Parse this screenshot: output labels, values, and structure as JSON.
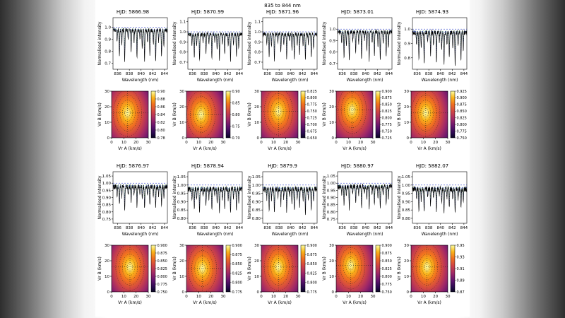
{
  "figure": {
    "suptitle": "835 to 844 nm",
    "xlabel_spectrum": "Wavelength (nm)",
    "ylabel_spectrum": "Normalised intensity",
    "xlabel_map": "Vr A (km/s)",
    "ylabel_map": "Vr B (km/s)",
    "background_color": "#ffffff",
    "spectrum_line_color": "#000000",
    "model_a_color": "#2233bb",
    "model_b_color": "#1e7a1e",
    "continuum_color": "#3344cc",
    "colormap": "inferno"
  },
  "chart_data": {
    "type": "grid",
    "description": "2x5 grid of epochs; each epoch has a normalised spectrum (835-844 nm) with model overlays and a chi-square velocity map Vr A vs Vr B with colorbar",
    "wavelength_range": [
      835.2,
      844.5
    ],
    "wavelength_ticks": [
      "836",
      "838",
      "840",
      "842",
      "844"
    ],
    "vr_range": [
      0,
      30
    ],
    "vr_ticks": [
      "0",
      "10",
      "20",
      "30"
    ],
    "absorption_lines": [
      [
        835.9,
        0.1
      ],
      [
        836.3,
        0.22
      ],
      [
        836.7,
        0.12
      ],
      [
        837.2,
        0.26
      ],
      [
        837.8,
        0.08
      ],
      [
        838.3,
        0.18
      ],
      [
        838.8,
        0.1
      ],
      [
        839.3,
        0.24
      ],
      [
        839.8,
        0.07
      ],
      [
        840.2,
        0.15
      ],
      [
        840.6,
        0.25
      ],
      [
        841.1,
        0.1
      ],
      [
        841.5,
        0.2
      ],
      [
        842.1,
        0.12
      ],
      [
        842.5,
        0.26
      ],
      [
        843.0,
        0.1
      ],
      [
        843.5,
        0.22
      ],
      [
        843.9,
        0.14
      ]
    ],
    "panels": [
      {
        "hjd": "HJD: 5866.98",
        "suptitle": "",
        "seed": 11,
        "depth_scale": 1.0,
        "spectrum": {
          "ylim": [
            0.65,
            1.08
          ],
          "yticks": [
            "0.7",
            "0.8",
            "0.9",
            "1.0"
          ]
        },
        "map": {
          "center": [
            13,
            16
          ],
          "cbar_ticks": [
            "0.90",
            "0.88",
            "0.86",
            "0.84",
            "0.82",
            "0.80",
            "0.78"
          ]
        }
      },
      {
        "hjd": "HJD: 5870.99",
        "suptitle": "",
        "seed": 22,
        "depth_scale": 1.0,
        "spectrum": {
          "ylim": [
            0.63,
            1.14
          ],
          "yticks": [
            "0.7",
            "0.8",
            "0.9",
            "1.0",
            "1.1"
          ]
        },
        "map": {
          "center": [
            12,
            15
          ],
          "cbar_ticks": [
            "0.90",
            "0.85",
            "0.80",
            "0.75",
            "0.70"
          ]
        }
      },
      {
        "hjd": "HJD: 5871.96",
        "suptitle": "835 to 844 nm",
        "seed": 33,
        "depth_scale": 1.0,
        "spectrum": {
          "ylim": [
            0.63,
            1.14
          ],
          "yticks": [
            "0.7",
            "0.8",
            "0.9",
            "1.0",
            "1.1"
          ]
        },
        "map": {
          "center": [
            14,
            17
          ],
          "cbar_ticks": [
            "0.825",
            "0.800",
            "0.775",
            "0.750",
            "0.725",
            "0.700",
            "0.675",
            "0.650"
          ]
        }
      },
      {
        "hjd": "HJD: 5873.01",
        "suptitle": "",
        "seed": 44,
        "depth_scale": 1.0,
        "spectrum": {
          "ylim": [
            0.65,
            1.1
          ],
          "yticks": [
            "0.7",
            "0.8",
            "0.9",
            "1.0"
          ]
        },
        "map": {
          "center": [
            13,
            18
          ],
          "cbar_ticks": [
            "0.900",
            "0.875",
            "0.850",
            "0.825",
            "0.800",
            "0.775",
            "0.750",
            "0.725"
          ]
        }
      },
      {
        "hjd": "HJD: 5874.93",
        "suptitle": "",
        "seed": 55,
        "depth_scale": 0.85,
        "spectrum": {
          "ylim": [
            0.72,
            1.08
          ],
          "yticks": [
            "0.8",
            "0.9",
            "1.0"
          ]
        },
        "map": {
          "center": [
            12,
            16
          ],
          "cbar_ticks": [
            "0.925",
            "0.900",
            "0.875",
            "0.850",
            "0.825",
            "0.800",
            "0.775",
            "0.750"
          ]
        }
      },
      {
        "hjd": "HJD: 5876.97",
        "suptitle": "",
        "seed": 66,
        "depth_scale": 0.6,
        "spectrum": {
          "ylim": [
            0.72,
            1.08
          ],
          "yticks": [
            "0.75",
            "0.80",
            "0.85",
            "0.90",
            "0.95",
            "1.00",
            "1.05"
          ]
        },
        "map": {
          "center": [
            15,
            16
          ],
          "cbar_ticks": [
            "0.900",
            "0.875",
            "0.850",
            "0.825",
            "0.800",
            "0.775",
            "0.750"
          ]
        }
      },
      {
        "hjd": "HJD: 5878.94",
        "suptitle": "",
        "seed": 77,
        "depth_scale": 0.55,
        "spectrum": {
          "ylim": [
            0.77,
            1.08
          ],
          "yticks": [
            "0.80",
            "0.85",
            "0.90",
            "0.95",
            "1.00",
            "1.05"
          ]
        },
        "map": {
          "center": [
            13,
            15
          ],
          "cbar_ticks": [
            "0.900",
            "0.875",
            "0.850",
            "0.825",
            "0.800",
            "0.775"
          ]
        }
      },
      {
        "hjd": "HJD: 5879.9",
        "suptitle": "",
        "seed": 88,
        "depth_scale": 0.55,
        "spectrum": {
          "ylim": [
            0.77,
            1.08
          ],
          "yticks": [
            "0.80",
            "0.85",
            "0.90",
            "0.95",
            "1.00",
            "1.05"
          ]
        },
        "map": {
          "center": [
            14,
            16
          ],
          "cbar_ticks": [
            "0.900",
            "0.875",
            "0.850",
            "0.825",
            "0.800",
            "0.775"
          ]
        }
      },
      {
        "hjd": "HJD: 5880.97",
        "suptitle": "",
        "seed": 99,
        "depth_scale": 0.6,
        "spectrum": {
          "ylim": [
            0.72,
            1.08
          ],
          "yticks": [
            "0.75",
            "0.80",
            "0.85",
            "0.90",
            "0.95",
            "1.00",
            "1.05"
          ]
        },
        "map": {
          "center": [
            12,
            17
          ],
          "cbar_ticks": [
            "0.900",
            "0.875",
            "0.850",
            "0.825",
            "0.800",
            "0.775",
            "0.750"
          ]
        }
      },
      {
        "hjd": "HJD: 5882.07",
        "suptitle": "",
        "seed": 110,
        "depth_scale": 0.55,
        "spectrum": {
          "ylim": [
            0.77,
            1.08
          ],
          "yticks": [
            "0.80",
            "0.85",
            "0.90",
            "0.95",
            "1.00",
            "1.05"
          ]
        },
        "map": {
          "center": [
            13,
            16
          ],
          "cbar_ticks": [
            "0.95",
            "0.93",
            "0.91",
            "0.89",
            "0.87"
          ]
        }
      }
    ]
  }
}
